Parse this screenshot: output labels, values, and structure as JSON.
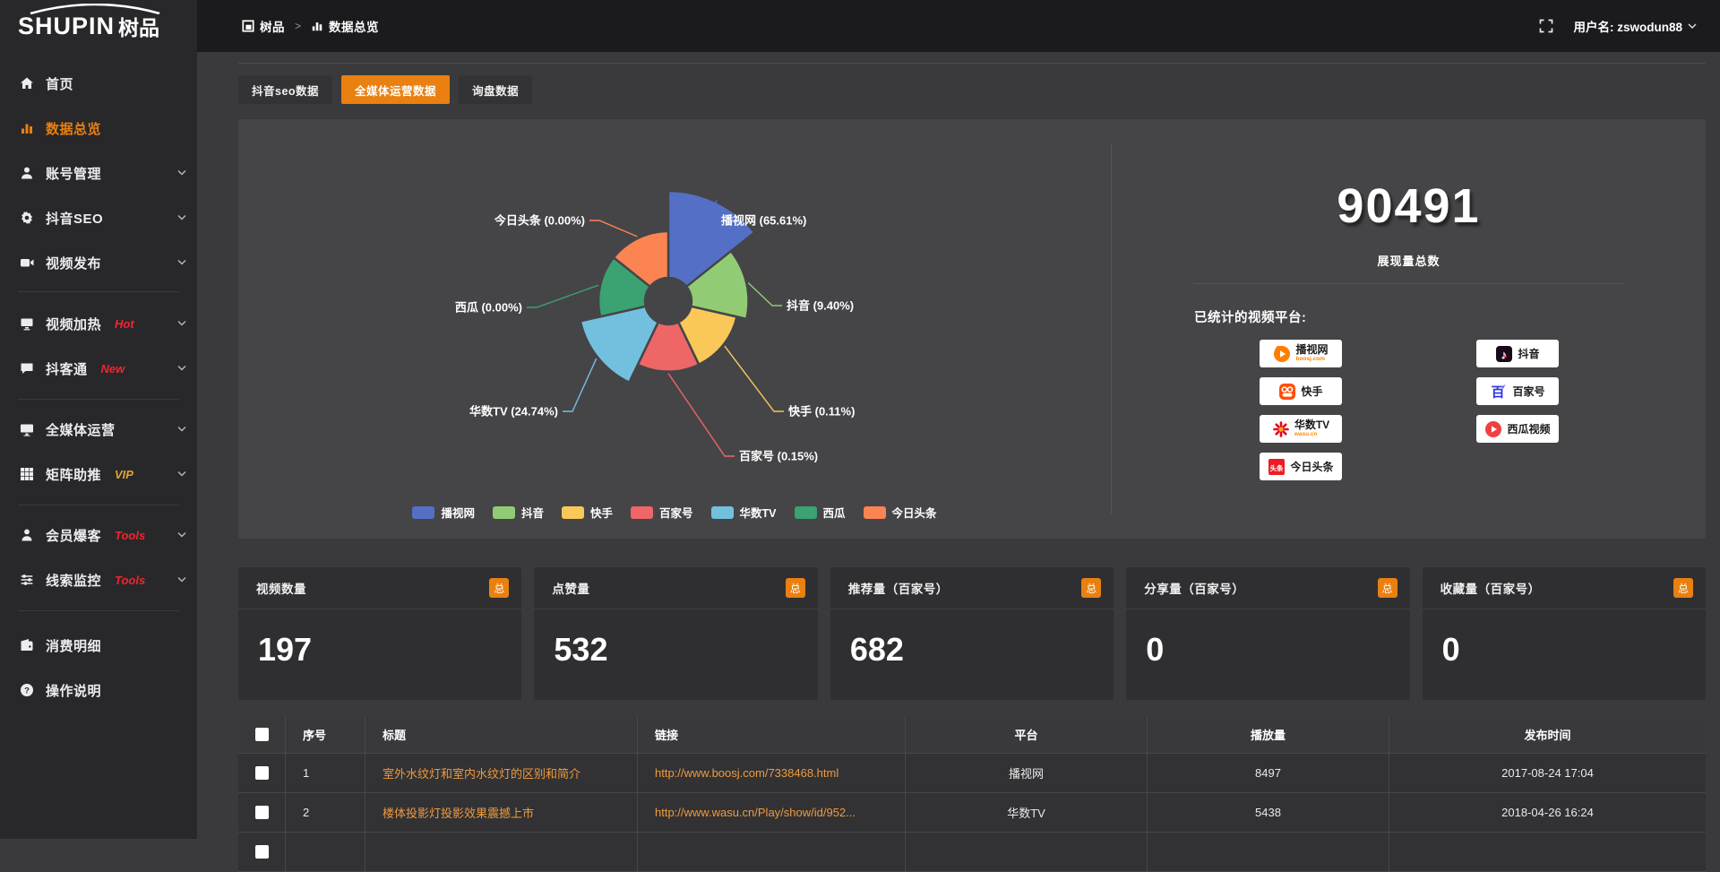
{
  "topbar": {
    "logo_en": "SHUPIN",
    "logo_cn": "树品",
    "breadcrumb": [
      {
        "label": "树品"
      },
      {
        "label": "数据总览"
      }
    ],
    "username": "用户名: zswodun88"
  },
  "sidebar": {
    "groups": [
      {
        "items": [
          {
            "label": "首页",
            "icon": "home-icon"
          },
          {
            "label": "数据总览",
            "icon": "chart-icon",
            "active": true
          },
          {
            "label": "账号管理",
            "icon": "user-icon",
            "chevron": true
          },
          {
            "label": "抖音SEO",
            "icon": "gear-icon",
            "chevron": true
          },
          {
            "label": "视频发布",
            "icon": "video-icon",
            "chevron": true
          }
        ]
      },
      {
        "items": [
          {
            "label": "视频加热",
            "icon": "screen-icon",
            "badge": "Hot",
            "badge_color": "#f3242c",
            "chevron": true
          },
          {
            "label": "抖客通",
            "icon": "chat-icon",
            "badge": "New",
            "badge_color": "#f3242c",
            "chevron": true
          }
        ]
      },
      {
        "items": [
          {
            "label": "全媒体运营",
            "icon": "monitor-icon",
            "chevron": true
          },
          {
            "label": "矩阵助推",
            "icon": "grid-icon",
            "badge": "VIP",
            "badge_color": "#dfa43a",
            "chevron": true
          }
        ]
      },
      {
        "items": [
          {
            "label": "会员爆客",
            "icon": "person-icon",
            "badge": "Tools",
            "badge_color": "#f3242c",
            "chevron": true
          },
          {
            "label": "线索监控",
            "icon": "sliders-icon",
            "badge": "Tools",
            "badge_color": "#f3242c",
            "chevron": true
          }
        ]
      },
      {
        "items": [
          {
            "label": "消费明细",
            "icon": "wallet-icon"
          },
          {
            "label": "操作说明",
            "icon": "question-icon"
          }
        ]
      }
    ]
  },
  "tabs": [
    {
      "label": "抖音seo数据",
      "active": false
    },
    {
      "label": "全媒体运营数据",
      "active": true
    },
    {
      "label": "询盘数据",
      "active": false
    }
  ],
  "chart_data": {
    "type": "pie",
    "subtype": "rose",
    "series": [
      {
        "name": "播视网",
        "value": 65.61
      },
      {
        "name": "抖音",
        "value": 9.4
      },
      {
        "name": "快手",
        "value": 0.11
      },
      {
        "name": "百家号",
        "value": 0.15
      },
      {
        "name": "华数TV",
        "value": 24.74
      },
      {
        "name": "西瓜",
        "value": 0.0
      },
      {
        "name": "今日头条",
        "value": 0.0
      }
    ],
    "label_format": "{name} ({value}%)",
    "legend": [
      "播视网",
      "抖音",
      "快手",
      "百家号",
      "华数TV",
      "西瓜",
      "今日头条"
    ],
    "legend_position": "bottom",
    "colors": [
      "#5470c6",
      "#91cc75",
      "#fac858",
      "#ee6666",
      "#73c0de",
      "#3ba272",
      "#fc8452"
    ]
  },
  "summary": {
    "total": "90491",
    "total_label": "展现量总数",
    "platforms_label": "已统计的视频平台:",
    "platform_cols": [
      [
        {
          "name": "播视网",
          "sub": "boosj.com",
          "sub_color": "#ff7e00",
          "icon": "boosj-icon"
        },
        {
          "name": "快手",
          "icon": "kuaishou-icon"
        },
        {
          "name": "华数TV",
          "sub": "wasu.cn",
          "sub_color": "#ff8a00",
          "icon": "wasu-icon"
        },
        {
          "name": "今日头条",
          "icon": "toutiao-icon"
        }
      ],
      [
        {
          "name": "抖音",
          "icon": "douyin-icon"
        },
        {
          "name": "百家号",
          "icon": "baijia-icon"
        },
        {
          "name": "西瓜视频",
          "icon": "xigua-icon"
        }
      ]
    ]
  },
  "stat_cards": [
    {
      "label": "视频数量",
      "badge": "总",
      "value": "197"
    },
    {
      "label": "点赞量",
      "badge": "总",
      "value": "532"
    },
    {
      "label": "推荐量（百家号）",
      "badge": "总",
      "value": "682"
    },
    {
      "label": "分享量（百家号）",
      "badge": "总",
      "value": "0"
    },
    {
      "label": "收藏量（百家号）",
      "badge": "总",
      "value": "0"
    }
  ],
  "table": {
    "headers": [
      "序号",
      "标题",
      "链接",
      "平台",
      "播放量",
      "发布时间"
    ],
    "rows": [
      {
        "no": "1",
        "title": "室外水纹灯和室内水纹灯的区别和简介",
        "link": "http://www.boosj.com/7338468.html",
        "platform": "播视网",
        "views": "8497",
        "time": "2017-08-24 17:04"
      },
      {
        "no": "2",
        "title": "楼体投影灯投影效果震撼上市",
        "link": "http://www.wasu.cn/Play/show/id/952...",
        "platform": "华数TV",
        "views": "5438",
        "time": "2018-04-26 16:24"
      },
      {
        "no": "",
        "title": "",
        "link": "",
        "platform": "",
        "views": "",
        "time": ""
      }
    ]
  },
  "accent_color": "#ea8010",
  "link_color": "#ee9a3d"
}
